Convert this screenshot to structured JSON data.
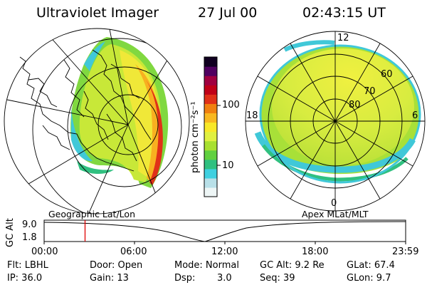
{
  "header": {
    "instrument": "Ultraviolet Imager",
    "date": "27 Jul 00",
    "time": "02:43:15 UT"
  },
  "left_panel": {
    "caption": "Geographic Lat/Lon",
    "projection": "geographic-grid-with-coastlines"
  },
  "colorbar": {
    "unit_label": "photon cm⁻²s⁻¹",
    "scale": "log",
    "tick_labels": [
      "100",
      "10"
    ],
    "colors": [
      "#eef6f6",
      "#b8e0e8",
      "#40d0e0",
      "#30c080",
      "#60d040",
      "#a8e030",
      "#e0f040",
      "#f8e828",
      "#f8b820",
      "#f08010",
      "#e03018",
      "#c00018",
      "#a00040",
      "#500060",
      "#100020"
    ]
  },
  "right_panel": {
    "caption": "Apex MLat/MLT",
    "mlt_labels": {
      "top": "12",
      "left": "18",
      "right": "6",
      "bottom": "0"
    },
    "mlat_labels": [
      "60",
      "70",
      "80"
    ]
  },
  "timeline": {
    "axis_title": "GC Alt",
    "y_tick_top": "9.0",
    "y_tick_bottom": "1.8",
    "time_ticks": [
      "00:00",
      "06:00",
      "12:00",
      "18:00",
      "23:59"
    ],
    "marker_time": "02:43"
  },
  "info": {
    "row1": {
      "flt": "Flt: LBHL",
      "door": "Door: Open",
      "mode": "Mode: Normal",
      "gc_alt": "GC Alt: 9.2 Re",
      "glat": "GLat: 67.4"
    },
    "row2": {
      "ip": "IP: 36.0",
      "gain": "Gain: 13",
      "dsp_label": "Dsp:",
      "dsp_value": "3.0",
      "seq": "Seq: 39",
      "glon": "GLon: 9.7"
    }
  }
}
